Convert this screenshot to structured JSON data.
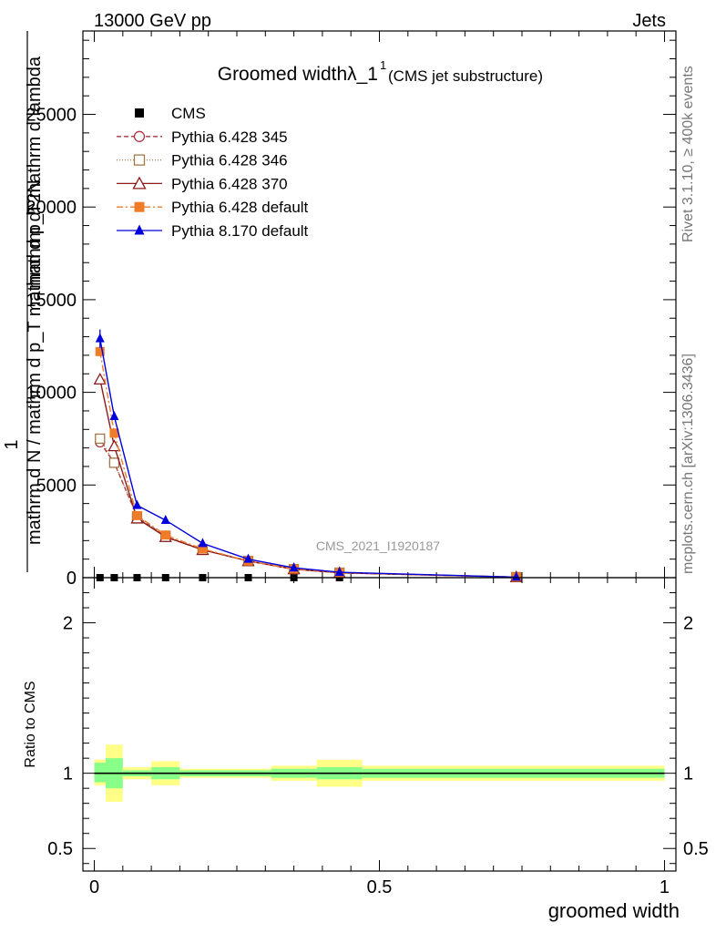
{
  "header": {
    "left": "13000 GeV pp",
    "right": "Jets",
    "side_top": "Rivet 3.1.10, ≥ 400k events",
    "side_bottom": "mcplots.cern.ch [arXiv:1306.3436]"
  },
  "chart_data": [
    {
      "type": "line",
      "panel": "main",
      "title": "Groomed widthλ_1",
      "title_sup": "1",
      "subtitle": "(CMS jet substructure)",
      "watermark": "CMS_2021_I1920187",
      "xlabel": "groomed width",
      "ylabel_numerator": "1",
      "ylabel_denominator": "mathrm d N / mathrm d p_T mathrm d p_T mathrm d lambda",
      "ylabel_over": "mathrm d^2N",
      "xlim": [
        -0.02,
        1.02
      ],
      "ylim": [
        0,
        29500
      ],
      "yticks": [
        0,
        5000,
        10000,
        15000,
        20000,
        25000
      ],
      "ytick_labels": [
        "0",
        "5000",
        "10000",
        "15000",
        "20000",
        "25000"
      ],
      "legend_position": "top-left",
      "series": [
        {
          "name": "CMS",
          "color": "#000000",
          "marker": "square-filled",
          "x": [
            0.01,
            0.035,
            0.075,
            0.125,
            0.19,
            0.27,
            0.35,
            0.43,
            0.74
          ],
          "y": [
            0,
            0,
            0,
            0,
            0,
            0,
            0,
            0,
            0
          ]
        },
        {
          "name": "Pythia 6.428 345",
          "color": "#b03040",
          "marker": "circle-open",
          "dash": "5,3",
          "x": [
            0.01,
            0.035,
            0.075,
            0.125,
            0.19,
            0.27,
            0.35,
            0.43,
            0.74
          ],
          "y": [
            7300,
            6200,
            3300,
            2200,
            1500,
            900,
            450,
            260,
            30
          ]
        },
        {
          "name": "Pythia 6.428 346",
          "color": "#a0784a",
          "marker": "square-open",
          "dash": "1,2",
          "x": [
            0.01,
            0.035,
            0.075,
            0.125,
            0.19,
            0.27,
            0.35,
            0.43,
            0.74
          ],
          "y": [
            7500,
            6200,
            3300,
            2250,
            1500,
            900,
            460,
            270,
            30
          ]
        },
        {
          "name": "Pythia 6.428 370",
          "color": "#8b1a1a",
          "marker": "triangle-open",
          "dash": "",
          "x": [
            0.01,
            0.035,
            0.075,
            0.125,
            0.19,
            0.27,
            0.35,
            0.43,
            0.74
          ],
          "y": [
            10700,
            7100,
            3200,
            2200,
            1500,
            900,
            460,
            260,
            30
          ]
        },
        {
          "name": "Pythia 6.428 default",
          "color": "#f07c2a",
          "marker": "square-filled",
          "dash": "7,3,2,3",
          "x": [
            0.01,
            0.035,
            0.075,
            0.125,
            0.19,
            0.27,
            0.35,
            0.43,
            0.74
          ],
          "y": [
            12200,
            7800,
            3350,
            2300,
            1550,
            900,
            470,
            270,
            30
          ]
        },
        {
          "name": "Pythia 8.170 default",
          "color": "#0000dd",
          "marker": "triangle-filled",
          "dash": "",
          "x": [
            0.01,
            0.035,
            0.075,
            0.125,
            0.19,
            0.27,
            0.35,
            0.43,
            0.74
          ],
          "y": [
            12900,
            8700,
            3900,
            3100,
            1850,
            1000,
            530,
            290,
            30
          ]
        }
      ]
    },
    {
      "type": "area",
      "panel": "ratio",
      "xlabel": "groomed width",
      "ylabel": "Ratio to CMS",
      "xlim": [
        -0.02,
        1.02
      ],
      "ylim": [
        0.35,
        2.3
      ],
      "yticks": [
        0.5,
        1,
        2
      ],
      "ytick_labels": [
        "0.5",
        "1",
        "2"
      ],
      "xticks": [
        0,
        0.5,
        1
      ],
      "xtick_labels": [
        "0",
        "0.5",
        "1"
      ],
      "reference": 1,
      "band_colors": {
        "outer": "#ffff88",
        "inner": "#88ff88",
        "line": "#000000"
      },
      "bins": [
        {
          "lo": 0.0,
          "hi": 0.02,
          "inner": [
            0.94,
            1.07
          ],
          "outer": [
            0.92,
            1.09
          ]
        },
        {
          "lo": 0.02,
          "hi": 0.05,
          "inner": [
            0.9,
            1.1
          ],
          "outer": [
            0.81,
            1.19
          ]
        },
        {
          "lo": 0.05,
          "hi": 0.1,
          "inner": [
            0.98,
            1.02
          ],
          "outer": [
            0.96,
            1.04
          ]
        },
        {
          "lo": 0.1,
          "hi": 0.15,
          "inner": [
            0.96,
            1.04
          ],
          "outer": [
            0.92,
            1.08
          ]
        },
        {
          "lo": 0.15,
          "hi": 0.23,
          "inner": [
            0.98,
            1.02
          ],
          "outer": [
            0.97,
            1.03
          ]
        },
        {
          "lo": 0.23,
          "hi": 0.31,
          "inner": [
            0.98,
            1.02
          ],
          "outer": [
            0.97,
            1.03
          ]
        },
        {
          "lo": 0.31,
          "hi": 0.39,
          "inner": [
            0.97,
            1.03
          ],
          "outer": [
            0.95,
            1.05
          ]
        },
        {
          "lo": 0.39,
          "hi": 0.47,
          "inner": [
            0.96,
            1.04
          ],
          "outer": [
            0.91,
            1.09
          ]
        },
        {
          "lo": 0.47,
          "hi": 1.0,
          "inner": [
            0.97,
            1.03
          ],
          "outer": [
            0.95,
            1.05
          ]
        }
      ]
    }
  ]
}
